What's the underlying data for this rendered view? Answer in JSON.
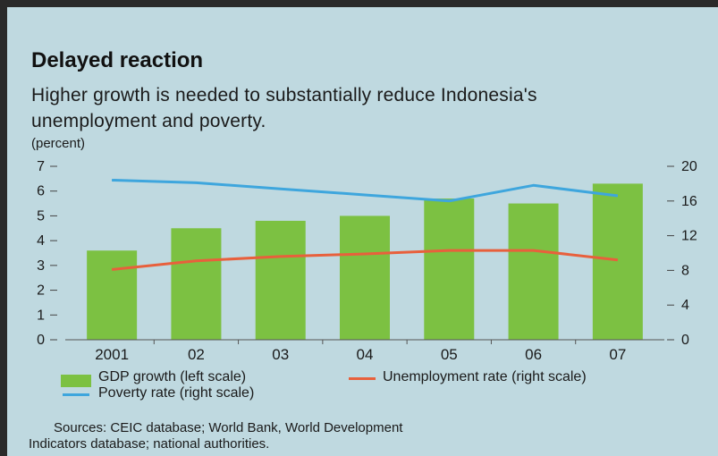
{
  "chart_data": {
    "type": "bar",
    "title": "Delayed reaction",
    "subtitle": "Higher growth is needed to substantially reduce Indonesia's unemployment and poverty.",
    "unit_label": "(percent)",
    "categories": [
      "2001",
      "02",
      "03",
      "04",
      "05",
      "06",
      "07"
    ],
    "left_axis": {
      "ylim": [
        0,
        7
      ],
      "ticks": [
        "0",
        "1",
        "2",
        "3",
        "4",
        "5",
        "6",
        "7"
      ]
    },
    "right_axis": {
      "ylim": [
        0,
        20
      ],
      "ticks": [
        "0",
        "4",
        "8",
        "12",
        "16",
        "20"
      ]
    },
    "series": [
      {
        "name": "GDP growth (left scale)",
        "type": "bar",
        "axis": "left",
        "color": "#7cc142",
        "values": [
          3.6,
          4.5,
          4.8,
          5.0,
          5.7,
          5.5,
          6.3
        ]
      },
      {
        "name": "Unemployment rate (right scale)",
        "type": "line",
        "axis": "right",
        "color": "#e8603c",
        "values": [
          8.1,
          9.1,
          9.6,
          9.9,
          10.3,
          10.3,
          9.2
        ]
      },
      {
        "name": "Poverty rate (right scale)",
        "type": "line",
        "axis": "right",
        "color": "#3ea6dd",
        "values": [
          18.4,
          18.1,
          17.4,
          16.7,
          16.0,
          17.8,
          16.6
        ]
      }
    ],
    "legend_placement": "bottom",
    "grid": false,
    "sources_line1": "Sources: CEIC database; World Bank, World Development",
    "sources_line2": "Indicators database; national authorities."
  }
}
